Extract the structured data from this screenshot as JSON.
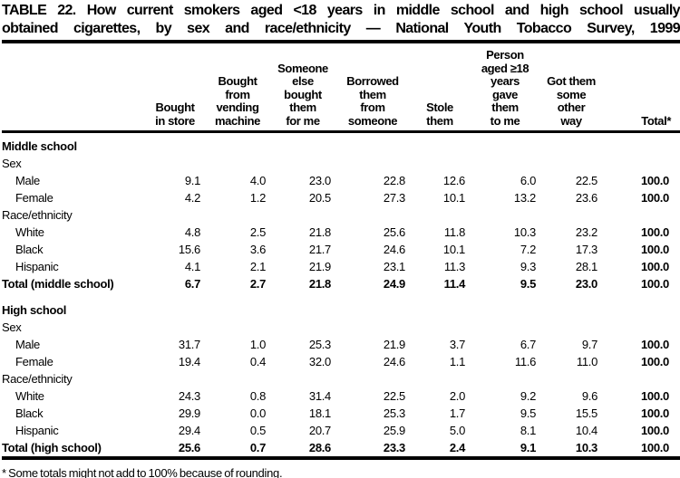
{
  "page": {
    "title_lines": [
      "TABLE 22. How current smokers aged <18 years in middle school and high school usually",
      "obtained cigarettes, by sex and race/ethnicity — National Youth Tobacco Survey, 1999"
    ],
    "footnote": "* Some totals might not add to 100% because of rounding."
  },
  "table": {
    "columns": [
      "Bought\nin store",
      "Bought\nfrom\nvending\nmachine",
      "Someone\nelse\nbought\nthem\nfor me",
      "Borrowed\nthem\nfrom\nsomeone",
      "Stole\nthem",
      "Person\naged ≥18\nyears\ngave\nthem\nto me",
      "Got them\nsome\nother\nway",
      "Total*"
    ],
    "rows": [
      {
        "label": "Middle school",
        "style": "section",
        "indent": false,
        "gap": false,
        "cells": null
      },
      {
        "label": "Sex",
        "style": "subsection",
        "indent": false,
        "gap": false,
        "cells": null
      },
      {
        "label": "Male",
        "style": "data",
        "indent": true,
        "gap": false,
        "cells": [
          "9.1",
          "4.0",
          "23.0",
          "22.8",
          "12.6",
          "6.0",
          "22.5",
          "100.0"
        ]
      },
      {
        "label": "Female",
        "style": "data",
        "indent": true,
        "gap": false,
        "cells": [
          "4.2",
          "1.2",
          "20.5",
          "27.3",
          "10.1",
          "13.2",
          "23.6",
          "100.0"
        ]
      },
      {
        "label": "Race/ethnicity",
        "style": "subsection",
        "indent": false,
        "gap": false,
        "cells": null
      },
      {
        "label": "White",
        "style": "data",
        "indent": true,
        "gap": false,
        "cells": [
          "4.8",
          "2.5",
          "21.8",
          "25.6",
          "11.8",
          "10.3",
          "23.2",
          "100.0"
        ]
      },
      {
        "label": "Black",
        "style": "data",
        "indent": true,
        "gap": false,
        "cells": [
          "15.6",
          "3.6",
          "21.7",
          "24.6",
          "10.1",
          "7.2",
          "17.3",
          "100.0"
        ]
      },
      {
        "label": "Hispanic",
        "style": "data",
        "indent": true,
        "gap": false,
        "cells": [
          "4.1",
          "2.1",
          "21.9",
          "23.1",
          "11.3",
          "9.3",
          "28.1",
          "100.0"
        ]
      },
      {
        "label": "Total (middle school)",
        "style": "total",
        "indent": false,
        "gap": false,
        "cells": [
          "6.7",
          "2.7",
          "21.8",
          "24.9",
          "11.4",
          "9.5",
          "23.0",
          "100.0"
        ]
      },
      {
        "label": "High school",
        "style": "section",
        "indent": false,
        "gap": true,
        "cells": null
      },
      {
        "label": "Sex",
        "style": "subsection",
        "indent": false,
        "gap": false,
        "cells": null
      },
      {
        "label": "Male",
        "style": "data",
        "indent": true,
        "gap": false,
        "cells": [
          "31.7",
          "1.0",
          "25.3",
          "21.9",
          "3.7",
          "6.7",
          "9.7",
          "100.0"
        ]
      },
      {
        "label": "Female",
        "style": "data",
        "indent": true,
        "gap": false,
        "cells": [
          "19.4",
          "0.4",
          "32.0",
          "24.6",
          "1.1",
          "11.6",
          "11.0",
          "100.0"
        ]
      },
      {
        "label": "Race/ethnicity",
        "style": "subsection",
        "indent": false,
        "gap": false,
        "cells": null
      },
      {
        "label": "White",
        "style": "data",
        "indent": true,
        "gap": false,
        "cells": [
          "24.3",
          "0.8",
          "31.4",
          "22.5",
          "2.0",
          "9.2",
          "9.6",
          "100.0"
        ]
      },
      {
        "label": "Black",
        "style": "data",
        "indent": true,
        "gap": false,
        "cells": [
          "29.9",
          "0.0",
          "18.1",
          "25.3",
          "1.7",
          "9.5",
          "15.5",
          "100.0"
        ]
      },
      {
        "label": "Hispanic",
        "style": "data",
        "indent": true,
        "gap": false,
        "cells": [
          "29.4",
          "0.5",
          "20.7",
          "25.9",
          "5.0",
          "8.1",
          "10.4",
          "100.0"
        ]
      },
      {
        "label": "Total (high school)",
        "style": "total",
        "indent": false,
        "gap": false,
        "cells": [
          "25.6",
          "0.7",
          "28.6",
          "23.3",
          "2.4",
          "9.1",
          "10.3",
          "100.0"
        ]
      }
    ]
  }
}
